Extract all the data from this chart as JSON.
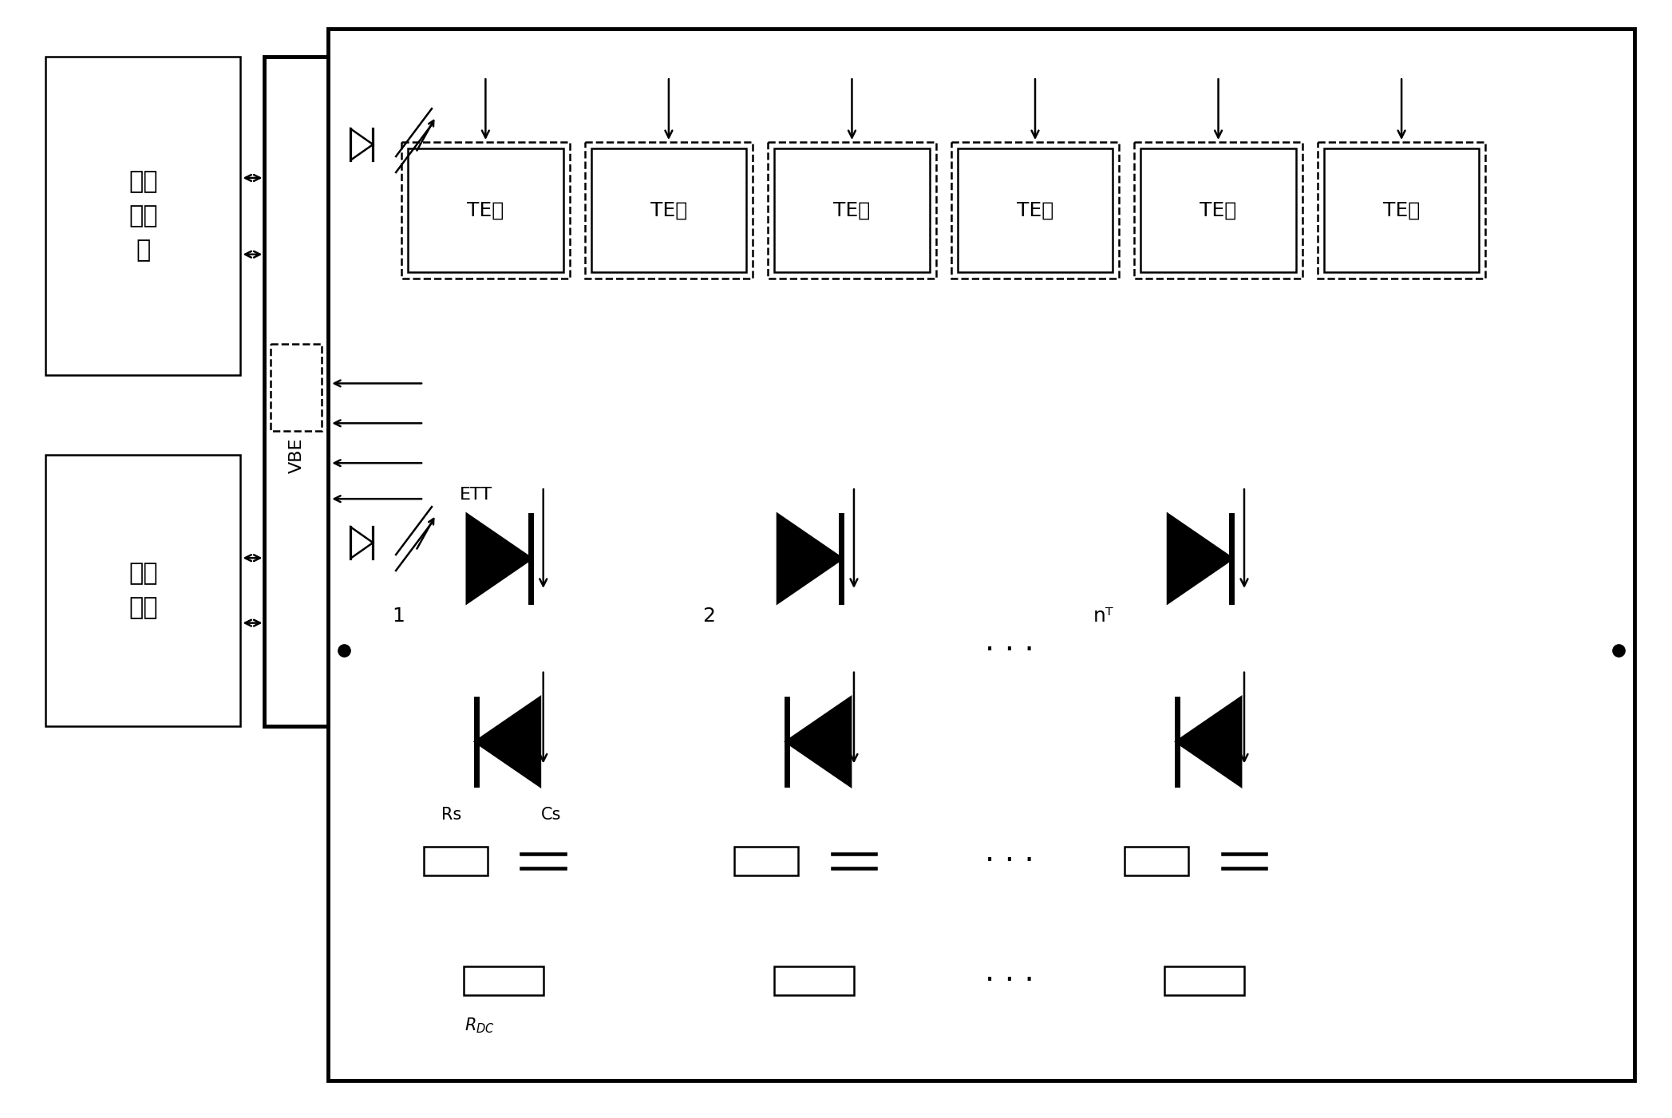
{
  "bg": "#ffffff",
  "lc": "#000000",
  "lw": 1.8,
  "tlw": 3.5,
  "figsize": [
    20.95,
    14.01
  ],
  "dpi": 100,
  "ws_label": "当地\n工作\n站",
  "ctrl_label": "控制\n系统",
  "vbe_label": "VBE",
  "ett_label": "ETT",
  "te_label": "TE板",
  "group_labels": [
    "1",
    "2",
    "nᵀ"
  ],
  "rs_label": "Rs",
  "cs_label": "Cs",
  "rdc_label": "R_{DC}"
}
